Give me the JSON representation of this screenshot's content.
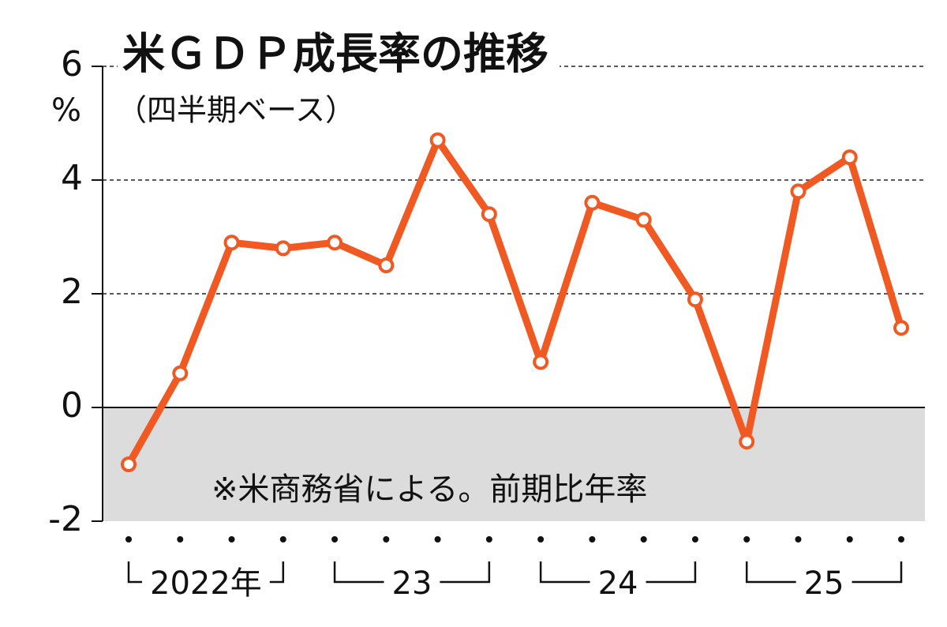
{
  "chart_data": {
    "type": "line",
    "title": "米ＧＤＰ成長率の推移",
    "subtitle": "（四半期ベース）",
    "y_unit": "%",
    "note": "※米商務省による。前期比年率",
    "categories": [
      null,
      null,
      null,
      null,
      null,
      null,
      null,
      null,
      null,
      null,
      null,
      null,
      null,
      null,
      null,
      null
    ],
    "year_labels": [
      "2022年",
      "23",
      "24",
      "25"
    ],
    "series": [
      {
        "name": "米GDP成長率",
        "color": "#f05a22",
        "values": [
          -1.0,
          0.6,
          2.9,
          2.8,
          2.9,
          2.5,
          4.7,
          3.4,
          0.8,
          3.6,
          3.3,
          1.9,
          -0.6,
          3.8,
          4.4,
          1.4
        ]
      }
    ],
    "ylim": [
      -2,
      6
    ],
    "yticks": [
      -2,
      0,
      2,
      4,
      6
    ],
    "grid": true,
    "negative_shading": true
  }
}
